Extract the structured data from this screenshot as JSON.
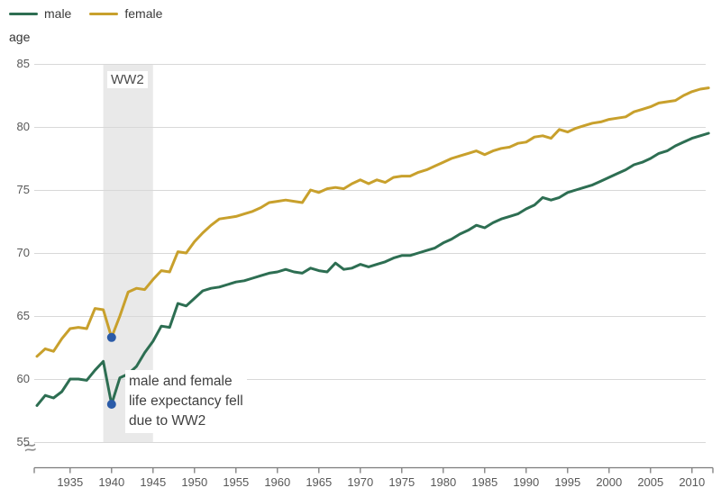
{
  "legend": {
    "items": [
      {
        "label": "male",
        "color": "#2d6e52"
      },
      {
        "label": "female",
        "color": "#c8a02c"
      }
    ]
  },
  "chart_data": {
    "type": "line",
    "ylabel": "age",
    "ylim": [
      55,
      85
    ],
    "xlim": [
      1931,
      2012
    ],
    "y_ticks": [
      55,
      60,
      65,
      70,
      75,
      80,
      85
    ],
    "x_ticks": [
      1935,
      1940,
      1945,
      1950,
      1955,
      1960,
      1965,
      1970,
      1975,
      1980,
      1985,
      1990,
      1995,
      2000,
      2005,
      2010
    ],
    "axis_break_symbol": "≈",
    "grid": true,
    "legend_position": "top-left",
    "band": {
      "label": "WW2",
      "from": 1939,
      "to": 1945,
      "color": "#e9e9e9"
    },
    "x_start_year": 1931,
    "series": [
      {
        "name": "male",
        "color": "#2d6e52",
        "values": [
          57.9,
          58.7,
          58.5,
          59.0,
          60.0,
          60.0,
          59.9,
          60.7,
          61.4,
          58.0,
          60.1,
          60.4,
          61.0,
          62.1,
          63.0,
          64.2,
          64.1,
          66.0,
          65.8,
          66.4,
          67.0,
          67.2,
          67.3,
          67.5,
          67.7,
          67.8,
          68.0,
          68.2,
          68.4,
          68.5,
          68.7,
          68.5,
          68.4,
          68.8,
          68.6,
          68.5,
          69.2,
          68.7,
          68.8,
          69.1,
          68.9,
          69.1,
          69.3,
          69.6,
          69.8,
          69.8,
          70.0,
          70.2,
          70.4,
          70.8,
          71.1,
          71.5,
          71.8,
          72.2,
          72.0,
          72.4,
          72.7,
          72.9,
          73.1,
          73.5,
          73.8,
          74.4,
          74.2,
          74.4,
          74.8,
          75.0,
          75.2,
          75.4,
          75.7,
          76.0,
          76.3,
          76.6,
          77.0,
          77.2,
          77.5,
          77.9,
          78.1,
          78.5,
          78.8,
          79.1,
          79.3,
          79.5
        ]
      },
      {
        "name": "female",
        "color": "#c8a02c",
        "values": [
          61.8,
          62.4,
          62.2,
          63.2,
          64.0,
          64.1,
          64.0,
          65.6,
          65.5,
          63.3,
          65.0,
          66.9,
          67.2,
          67.1,
          67.9,
          68.6,
          68.5,
          70.1,
          70.0,
          70.9,
          71.6,
          72.2,
          72.7,
          72.8,
          72.9,
          73.1,
          73.3,
          73.6,
          74.0,
          74.1,
          74.2,
          74.1,
          74.0,
          75.0,
          74.8,
          75.1,
          75.2,
          75.1,
          75.5,
          75.8,
          75.5,
          75.8,
          75.6,
          76.0,
          76.1,
          76.1,
          76.4,
          76.6,
          76.9,
          77.2,
          77.5,
          77.7,
          77.9,
          78.1,
          77.8,
          78.1,
          78.3,
          78.4,
          78.7,
          78.8,
          79.2,
          79.3,
          79.1,
          79.8,
          79.6,
          79.9,
          80.1,
          80.3,
          80.4,
          80.6,
          80.7,
          80.8,
          81.2,
          81.4,
          81.6,
          81.9,
          82.0,
          82.1,
          82.5,
          82.8,
          83.0,
          83.1
        ]
      }
    ],
    "markers": [
      {
        "series": "male",
        "year": 1940,
        "value": 58.0
      },
      {
        "series": "female",
        "year": 1940,
        "value": 63.3
      }
    ],
    "marker_color": "#2b5ba8",
    "annotation": {
      "lines": [
        "male and female",
        "life expectancy fell",
        "due to WW2"
      ]
    }
  }
}
